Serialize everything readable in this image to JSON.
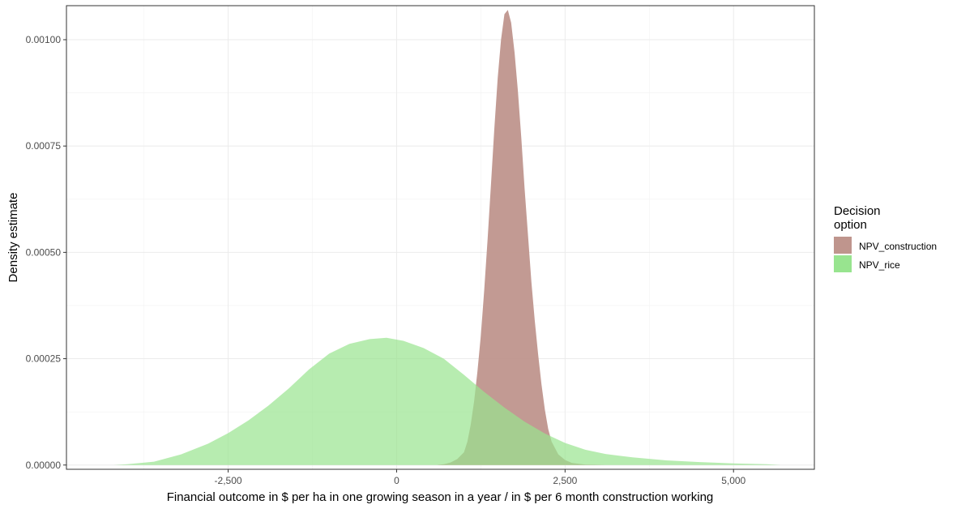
{
  "chart_data": {
    "type": "area",
    "xlabel": "Financial outcome in $ per ha in one growing season in a year / in $ per 6 month construction working",
    "ylabel": "Density estimate",
    "xlim": [
      -4900,
      6200
    ],
    "ylim": [
      -1e-05,
      0.00108
    ],
    "x_ticks": [
      -2500,
      0,
      2500,
      5000
    ],
    "x_tick_labels": [
      "-2,500",
      "0",
      "2,500",
      "5,000"
    ],
    "y_ticks": [
      0,
      0.00025,
      0.0005,
      0.00075,
      0.001
    ],
    "y_tick_labels": [
      "0.00000",
      "0.00025",
      "0.00050",
      "0.00075",
      "0.00100"
    ],
    "grid": true,
    "legend": {
      "title_lines": [
        "Decision",
        "option"
      ],
      "position": "right"
    },
    "series": [
      {
        "name": "NPV_construction",
        "color": "#bf958d",
        "points": [
          [
            600,
            0
          ],
          [
            700,
            2e-06
          ],
          [
            800,
            6e-06
          ],
          [
            900,
            1.4e-05
          ],
          [
            1000,
            3e-05
          ],
          [
            1050,
            5.5e-05
          ],
          [
            1100,
            9.5e-05
          ],
          [
            1150,
            0.00015
          ],
          [
            1200,
            0.00022
          ],
          [
            1250,
            0.000305
          ],
          [
            1300,
            0.00041
          ],
          [
            1350,
            0.00053
          ],
          [
            1400,
            0.00066
          ],
          [
            1450,
            0.00079
          ],
          [
            1500,
            0.00091
          ],
          [
            1550,
            0.001
          ],
          [
            1600,
            0.00106
          ],
          [
            1650,
            0.00107
          ],
          [
            1700,
            0.00104
          ],
          [
            1750,
            0.00097
          ],
          [
            1800,
            0.00088
          ],
          [
            1850,
            0.00077
          ],
          [
            1900,
            0.00065
          ],
          [
            1950,
            0.00054
          ],
          [
            2000,
            0.00043
          ],
          [
            2050,
            0.00034
          ],
          [
            2100,
            0.00026
          ],
          [
            2150,
            0.00019
          ],
          [
            2200,
            0.00013
          ],
          [
            2250,
            8.5e-05
          ],
          [
            2300,
            5.5e-05
          ],
          [
            2400,
            2.5e-05
          ],
          [
            2500,
            1.2e-05
          ],
          [
            2600,
            5e-06
          ],
          [
            2800,
            1e-06
          ],
          [
            3100,
            0
          ]
        ]
      },
      {
        "name": "NPV_rice",
        "color": "#98e48f",
        "points": [
          [
            -4200,
            0
          ],
          [
            -4000,
            2e-06
          ],
          [
            -3600,
            8e-06
          ],
          [
            -3200,
            2.5e-05
          ],
          [
            -2800,
            5e-05
          ],
          [
            -2500,
            7.5e-05
          ],
          [
            -2200,
            0.000105
          ],
          [
            -1900,
            0.00014
          ],
          [
            -1600,
            0.00018
          ],
          [
            -1300,
            0.000225
          ],
          [
            -1000,
            0.000262
          ],
          [
            -700,
            0.000285
          ],
          [
            -400,
            0.000296
          ],
          [
            -150,
            0.000299
          ],
          [
            100,
            0.000292
          ],
          [
            400,
            0.000275
          ],
          [
            700,
            0.00025
          ],
          [
            1000,
            0.000212
          ],
          [
            1300,
            0.000172
          ],
          [
            1600,
            0.000135
          ],
          [
            1900,
            0.000102
          ],
          [
            2200,
            7.4e-05
          ],
          [
            2500,
            5.2e-05
          ],
          [
            2800,
            3.6e-05
          ],
          [
            3100,
            2.6e-05
          ],
          [
            3500,
            1.8e-05
          ],
          [
            4000,
            1.1e-05
          ],
          [
            4500,
            7e-06
          ],
          [
            5000,
            4e-06
          ],
          [
            5500,
            2e-06
          ],
          [
            5700,
            0
          ]
        ]
      }
    ]
  }
}
